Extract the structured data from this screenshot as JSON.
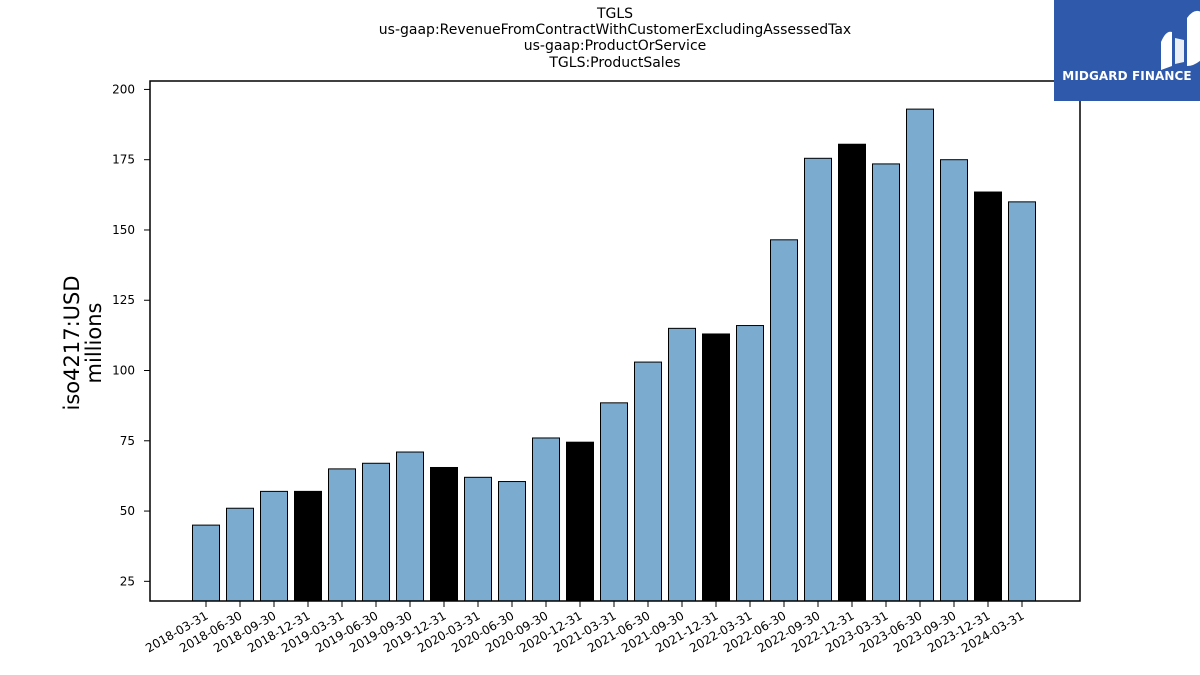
{
  "chart_data": {
    "type": "bar",
    "title_lines": [
      "TGLS",
      "us-gaap:RevenueFromContractWithCustomerExcludingAssessedTax",
      "us-gaap:ProductOrService",
      "TGLS:ProductSales"
    ],
    "ylabel_lines": [
      "iso4217:USD",
      "millions"
    ],
    "xlabel": "",
    "ylim": [
      18,
      203
    ],
    "yticks": [
      25,
      50,
      75,
      100,
      125,
      150,
      175,
      200
    ],
    "categories": [
      "2018-03-31",
      "2018-06-30",
      "2018-09-30",
      "2018-12-31",
      "2019-03-31",
      "2019-06-30",
      "2019-09-30",
      "2019-12-31",
      "2020-03-31",
      "2020-06-30",
      "2020-09-30",
      "2020-12-31",
      "2021-03-31",
      "2021-06-30",
      "2021-09-30",
      "2021-12-31",
      "2022-03-31",
      "2022-06-30",
      "2022-09-30",
      "2022-12-31",
      "2023-03-31",
      "2023-06-30",
      "2023-09-30",
      "2023-12-31",
      "2024-03-31"
    ],
    "values": [
      45,
      51,
      57,
      57,
      65,
      67,
      71,
      65.5,
      62,
      60.5,
      76,
      74.5,
      88.5,
      103,
      115,
      113,
      116,
      146.5,
      175.5,
      180.5,
      173.5,
      193,
      175,
      163.5,
      160
    ],
    "highlight_indices": [
      3,
      7,
      11,
      15,
      19,
      23
    ],
    "colors": {
      "bar": "#7bacd0",
      "highlight": "#000000",
      "edge": "#000000"
    },
    "grid": false,
    "legend": "none"
  },
  "logo": {
    "text": "MIDGARD FINANCE",
    "background": "#2f5aab"
  }
}
